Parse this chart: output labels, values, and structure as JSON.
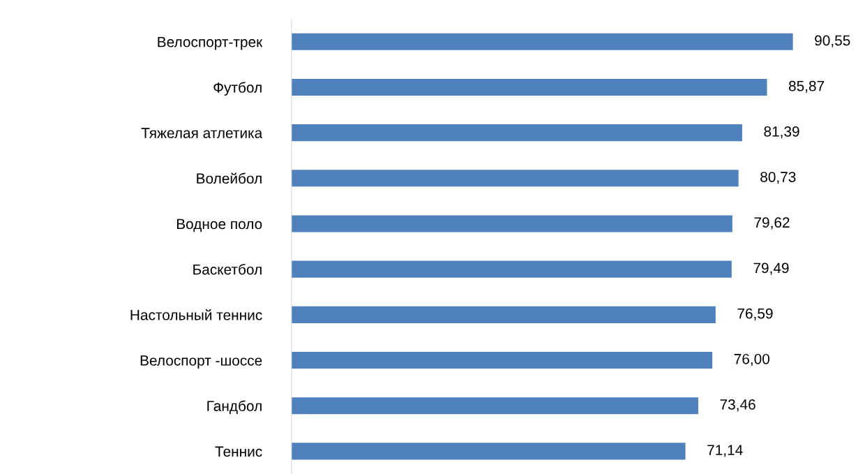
{
  "chart_data": {
    "type": "bar",
    "orientation": "horizontal",
    "categories": [
      "Велоспорт-трек",
      "Футбол",
      "Тяжелая атлетика",
      "Волейбол",
      "Водное поло",
      "Баскетбол",
      "Настольный теннис",
      "Велоспорт -шоссе",
      "Гандбол",
      "Теннис"
    ],
    "values": [
      90.55,
      85.87,
      81.39,
      80.73,
      79.62,
      79.49,
      76.59,
      76.0,
      73.46,
      71.14
    ],
    "value_labels": [
      "90,55",
      "85,87",
      "81,39",
      "80,73",
      "79,62",
      "79,49",
      "76,59",
      "76,00",
      "73,46",
      "71,14"
    ],
    "color": "#4f81bd",
    "grid": false,
    "legend": false
  }
}
